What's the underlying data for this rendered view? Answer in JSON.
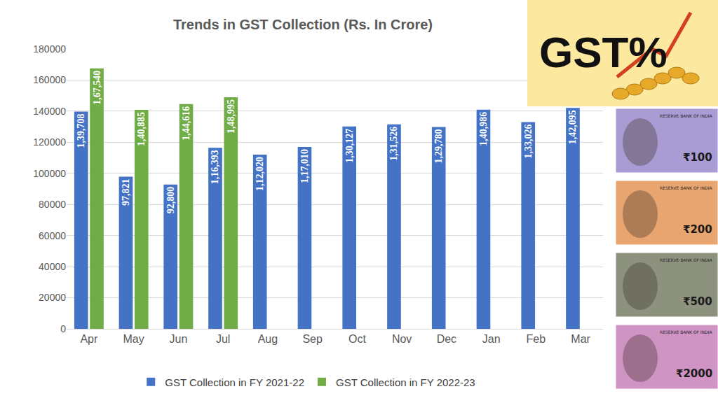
{
  "chart_data": {
    "type": "bar",
    "title": "Trends in GST Collection (Rs. In Crore)",
    "categories": [
      "Apr",
      "May",
      "Jun",
      "Jul",
      "Aug",
      "Sep",
      "Oct",
      "Nov",
      "Dec",
      "Jan",
      "Feb",
      "Mar"
    ],
    "series": [
      {
        "name": "GST Collection in FY 2021-22",
        "color": "#4472c4",
        "values": [
          139708,
          97821,
          92800,
          116393,
          112020,
          117010,
          130127,
          131526,
          129780,
          140986,
          133026,
          142095
        ],
        "value_labels": [
          "1,39,708",
          "97,821",
          "92,800",
          "1,16,393",
          "1,12,020",
          "1,17,010",
          "1,30,127",
          "1,31,526",
          "1,29,780",
          "1,40,986",
          "1,33,026",
          "1,42,095"
        ]
      },
      {
        "name": "GST Collection in FY 2022-23",
        "color": "#70ad47",
        "values": [
          167540,
          140885,
          144616,
          148995,
          null,
          null,
          null,
          null,
          null,
          null,
          null,
          null
        ],
        "value_labels": [
          "1,67,540",
          "1,40,885",
          "1,44,616",
          "1,48,995",
          null,
          null,
          null,
          null,
          null,
          null,
          null,
          null
        ]
      }
    ],
    "ylim": [
      0,
      180000
    ],
    "yticks": [
      0,
      20000,
      40000,
      60000,
      80000,
      100000,
      120000,
      140000,
      160000,
      180000
    ],
    "grid": true,
    "legend": "bottom",
    "data_labels": true,
    "annotations": {
      "logo": "GST%",
      "issuer": "RESERVE BANK OF INDIA",
      "banknotes": [
        "₹100",
        "₹200",
        "₹500",
        "₹2000"
      ]
    }
  }
}
